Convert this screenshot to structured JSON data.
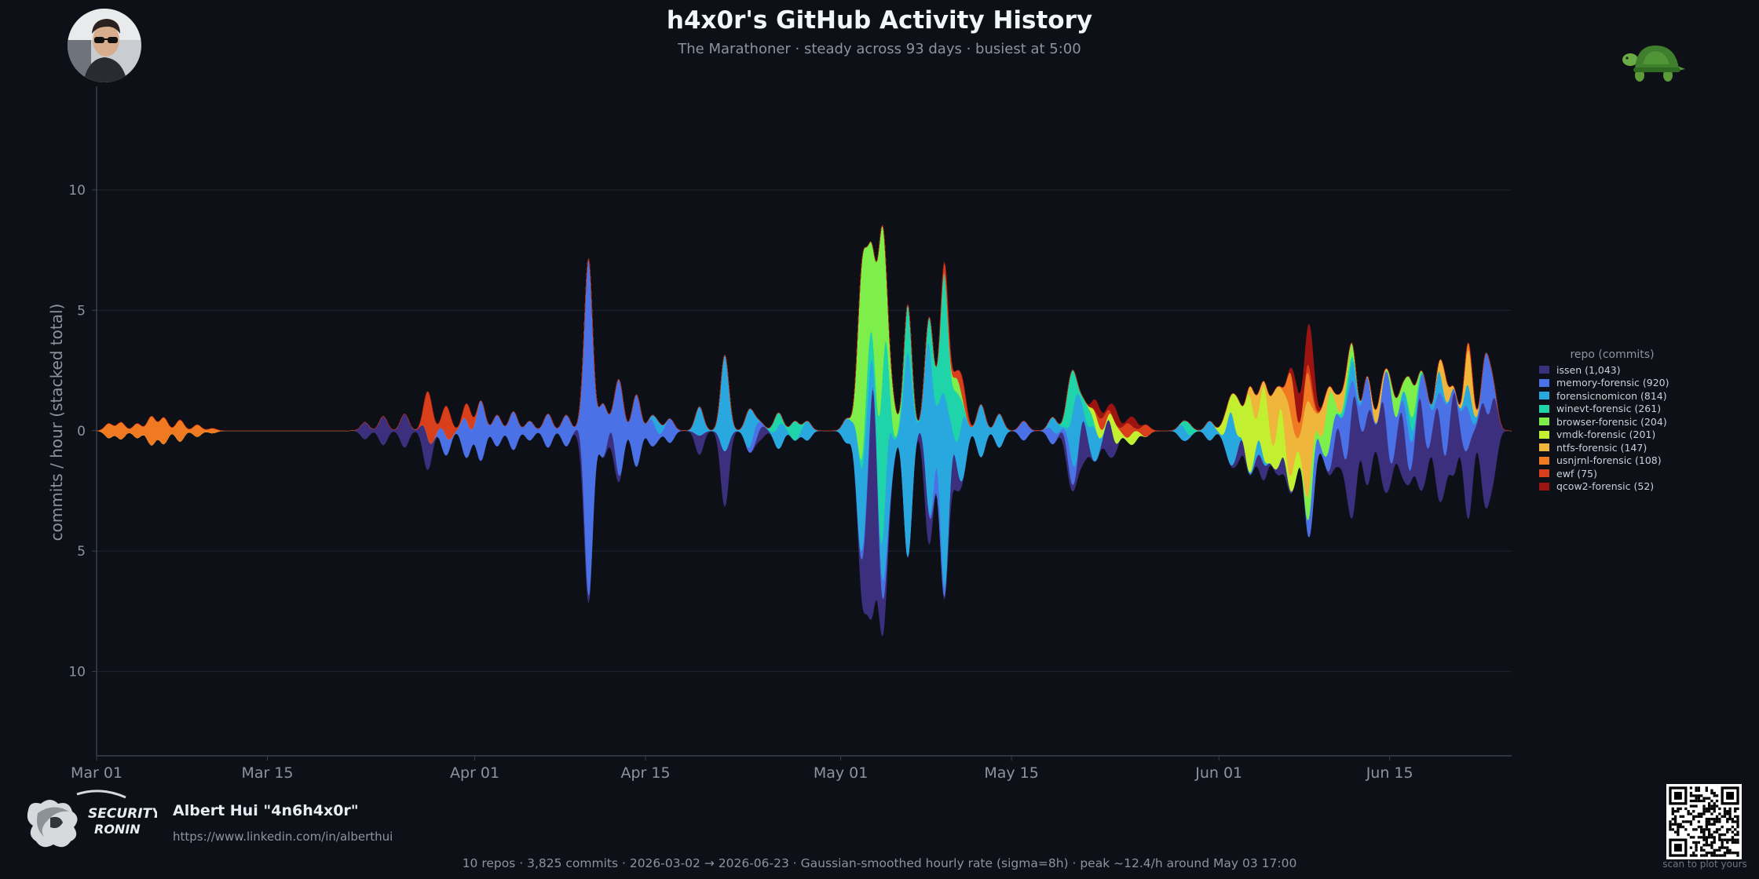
{
  "header": {
    "title": "h4x0r's GitHub Activity History",
    "subtitle": "The Marathoner · steady across 93 days · busiest at 5:00"
  },
  "author": {
    "name": "Albert Hui \"4n6h4x0r\"",
    "url": "https://www.linkedin.com/in/alberthui",
    "logo_text_top": "SECURITY",
    "logo_text_bottom": "RONIN"
  },
  "footer": {
    "summary": "10 repos · 3,825 commits · 2026-03-02 → 2026-06-23 · Gaussian-smoothed hourly rate (sigma=8h) · peak ~12.4/h around May 03 17:00",
    "qr_caption": "scan to plot yours"
  },
  "icons": {
    "avatar": "user-avatar-photo",
    "mascot": "turtle-icon",
    "logo": "security-ronin-logo",
    "qr": "qr-code"
  },
  "chart_data": {
    "type": "area",
    "subtype": "streamgraph",
    "ylabel": "commits / hour (stacked total)",
    "ylim": [
      -13.5,
      14.3
    ],
    "yticks": [
      -10,
      -5,
      0,
      5,
      10
    ],
    "ytick_labels": [
      "10",
      "5",
      "0",
      "5",
      "10"
    ],
    "xlim": [
      "2026-03-01",
      "2026-06-25"
    ],
    "xticks": [
      "2026-03-01",
      "2026-03-15",
      "2026-04-01",
      "2026-04-15",
      "2026-05-01",
      "2026-05-15",
      "2026-06-01",
      "2026-06-15"
    ],
    "xtick_labels": [
      "Mar 01",
      "Mar 15",
      "Apr 01",
      "Apr 15",
      "May 01",
      "May 15",
      "Jun 01",
      "Jun 15"
    ],
    "grid": "horizontal",
    "legend_title": "repo (commits)",
    "legend_position": "right",
    "series": [
      {
        "name": "issen",
        "commits": "1,043",
        "color": "#3b2f7e",
        "bursts": [
          [
            "2026-03-23T00",
            0.7
          ],
          [
            "2026-03-24T12",
            1.2
          ],
          [
            "2026-03-26T06",
            1.4
          ],
          [
            "2026-03-28T00",
            1.5
          ],
          [
            "2026-04-09T20",
            0.9
          ],
          [
            "2026-04-12T08",
            0.8
          ],
          [
            "2026-04-19T10",
            0.8
          ],
          [
            "2026-04-21T12",
            2.3
          ],
          [
            "2026-04-24T12",
            0.5
          ],
          [
            "2026-05-03T00",
            2.0
          ],
          [
            "2026-05-03T15",
            9.0
          ],
          [
            "2026-05-04T12",
            1.1
          ],
          [
            "2026-05-08T00",
            1.6
          ],
          [
            "2026-05-10T06",
            1.5
          ],
          [
            "2026-05-19T12",
            0.6
          ],
          [
            "2026-05-20T20",
            1.8
          ],
          [
            "2026-05-23T00",
            1.5
          ],
          [
            "2026-06-02T18",
            0.7
          ],
          [
            "2026-06-04T12",
            0.8
          ],
          [
            "2026-06-06T06",
            0.7
          ],
          [
            "2026-06-10T18",
            1.6
          ],
          [
            "2026-06-12T00",
            4.8
          ],
          [
            "2026-06-13T06",
            3.0
          ],
          [
            "2026-06-14T12",
            3.5
          ],
          [
            "2026-06-16T00",
            2.6
          ],
          [
            "2026-06-17T12",
            3.8
          ],
          [
            "2026-06-19T00",
            3.6
          ],
          [
            "2026-06-20T06",
            3.4
          ],
          [
            "2026-06-21T12",
            3.0
          ],
          [
            "2026-06-22T18",
            3.8
          ],
          [
            "2026-06-23T12",
            3.2
          ]
        ]
      },
      {
        "name": "memory-forensic",
        "commits": "920",
        "color": "#4a72e6",
        "bursts": [
          [
            "2026-03-29T12",
            0.9
          ],
          [
            "2026-03-31T06",
            1.6
          ],
          [
            "2026-04-01T12",
            2.5
          ],
          [
            "2026-04-02T20",
            1.3
          ],
          [
            "2026-04-04T04",
            1.6
          ],
          [
            "2026-04-05T12",
            0.8
          ],
          [
            "2026-04-07T00",
            1.4
          ],
          [
            "2026-04-08T12",
            1.3
          ],
          [
            "2026-04-10T08",
            14.0
          ],
          [
            "2026-04-11T12",
            2.2
          ],
          [
            "2026-04-12T20",
            4.0
          ],
          [
            "2026-04-14T06",
            3.0
          ],
          [
            "2026-04-15T12",
            1.1
          ],
          [
            "2026-04-17T00",
            1.0
          ],
          [
            "2026-04-24T00",
            0.6
          ],
          [
            "2026-05-03T00",
            0.5
          ],
          [
            "2026-05-04T12",
            0.8
          ],
          [
            "2026-05-09T00",
            1.2
          ],
          [
            "2026-05-16T00",
            0.8
          ],
          [
            "2026-05-18T06",
            0.6
          ],
          [
            "2026-05-19T20",
            1.0
          ],
          [
            "2026-06-08T18",
            1.5
          ],
          [
            "2026-06-10T06",
            1.2
          ],
          [
            "2026-06-11T12",
            2.3
          ],
          [
            "2026-06-13T00",
            1.8
          ],
          [
            "2026-06-15T00",
            3.2
          ],
          [
            "2026-06-16T12",
            1.5
          ],
          [
            "2026-06-18T00",
            2.4
          ],
          [
            "2026-06-19T12",
            2.2
          ],
          [
            "2026-06-21T06",
            1.9
          ],
          [
            "2026-06-23T00",
            2.5
          ]
        ]
      },
      {
        "name": "forensicnomicon",
        "commits": "814",
        "color": "#29a8e0",
        "bursts": [
          [
            "2026-04-16T00",
            0.5
          ],
          [
            "2026-04-19T10",
            1.2
          ],
          [
            "2026-04-21T12",
            4.0
          ],
          [
            "2026-04-23T12",
            1.6
          ],
          [
            "2026-04-26T00",
            1.0
          ],
          [
            "2026-04-28T06",
            0.8
          ],
          [
            "2026-05-01T12",
            1.0
          ],
          [
            "2026-05-02T12",
            3.0
          ],
          [
            "2026-05-03T04",
            2.5
          ],
          [
            "2026-05-04T20",
            3.5
          ],
          [
            "2026-05-06T12",
            8.5
          ],
          [
            "2026-05-08T06",
            7.0
          ],
          [
            "2026-05-09T12",
            8.0
          ],
          [
            "2026-05-11T00",
            2.5
          ],
          [
            "2026-05-12T12",
            2.2
          ],
          [
            "2026-05-14T00",
            1.4
          ],
          [
            "2026-05-18T12",
            0.6
          ],
          [
            "2026-05-20T06",
            2.8
          ],
          [
            "2026-05-21T18",
            1.4
          ],
          [
            "2026-05-29T00",
            0.6
          ],
          [
            "2026-05-31T06",
            0.8
          ],
          [
            "2026-06-02T00",
            2.2
          ],
          [
            "2026-06-04T06",
            0.6
          ],
          [
            "2026-06-12T00",
            0.8
          ],
          [
            "2026-06-16T12",
            0.8
          ],
          [
            "2026-06-19T00",
            0.9
          ],
          [
            "2026-06-21T12",
            1.0
          ]
        ]
      },
      {
        "name": "winevt-forensic",
        "commits": "261",
        "color": "#1ed4a8",
        "bursts": [
          [
            "2026-04-25T18",
            0.6
          ],
          [
            "2026-04-27T06",
            0.8
          ],
          [
            "2026-05-03T06",
            1.5
          ],
          [
            "2026-05-04T12",
            7.0
          ],
          [
            "2026-05-06T12",
            2.0
          ],
          [
            "2026-05-08T12",
            1.5
          ],
          [
            "2026-05-09T12",
            5.0
          ],
          [
            "2026-05-10T12",
            2.0
          ],
          [
            "2026-05-19T20",
            2.0
          ],
          [
            "2026-05-21T06",
            0.8
          ],
          [
            "2026-05-29T12",
            0.5
          ],
          [
            "2026-06-11T12",
            0.5
          ],
          [
            "2026-06-17T00",
            0.6
          ]
        ]
      },
      {
        "name": "browser-forensic",
        "commits": "204",
        "color": "#7eef4a",
        "bursts": [
          [
            "2026-05-02T18",
            8.0
          ],
          [
            "2026-05-03T12",
            2.5
          ],
          [
            "2026-05-04T06",
            7.0
          ],
          [
            "2026-05-05T06",
            1.6
          ],
          [
            "2026-05-10T12",
            0.6
          ],
          [
            "2026-06-08T12",
            1.2
          ],
          [
            "2026-06-10T00",
            2.2
          ],
          [
            "2026-06-11T18",
            0.6
          ],
          [
            "2026-06-15T12",
            0.8
          ],
          [
            "2026-06-16T18",
            1.5
          ]
        ]
      },
      {
        "name": "vmdk-forensic",
        "commits": "201",
        "color": "#c2ef2f",
        "bursts": [
          [
            "2026-05-22T00",
            0.6
          ],
          [
            "2026-05-23T12",
            0.8
          ],
          [
            "2026-05-25T00",
            0.5
          ],
          [
            "2026-06-01T12",
            0.7
          ],
          [
            "2026-06-02T12",
            1.5
          ],
          [
            "2026-06-03T12",
            3.2
          ],
          [
            "2026-06-04T18",
            3.0
          ],
          [
            "2026-06-06T00",
            2.2
          ],
          [
            "2026-06-07T06",
            1.0
          ]
        ]
      },
      {
        "name": "ntfs-forensic",
        "commits": "147",
        "color": "#f0b63c",
        "bursts": [
          [
            "2026-06-04T00",
            1.0
          ],
          [
            "2026-06-05T12",
            2.2
          ],
          [
            "2026-06-06T18",
            2.8
          ],
          [
            "2026-06-08T06",
            4.0
          ],
          [
            "2026-06-09T12",
            1.2
          ],
          [
            "2026-06-11T00",
            0.8
          ],
          [
            "2026-06-14T00",
            0.6
          ],
          [
            "2026-06-19T12",
            1.0
          ],
          [
            "2026-06-21T12",
            1.5
          ]
        ]
      },
      {
        "name": "usnjrnl-forensic",
        "commits": "108",
        "color": "#f07a22",
        "bursts": [
          [
            "2026-03-02T00",
            0.6
          ],
          [
            "2026-03-03T00",
            0.7
          ],
          [
            "2026-03-04T08",
            0.6
          ],
          [
            "2026-03-05T12",
            1.2
          ],
          [
            "2026-03-06T12",
            1.1
          ],
          [
            "2026-03-07T20",
            0.9
          ],
          [
            "2026-03-09T06",
            0.5
          ],
          [
            "2026-03-10T12",
            0.2
          ],
          [
            "2026-06-07T00",
            1.8
          ],
          [
            "2026-06-08T06",
            1.2
          ],
          [
            "2026-06-21T12",
            0.3
          ]
        ]
      },
      {
        "name": "ewf",
        "commits": "75",
        "color": "#d8401c",
        "bursts": [
          [
            "2026-03-28T06",
            2.0
          ],
          [
            "2026-03-29T18",
            1.3
          ],
          [
            "2026-03-31T12",
            0.8
          ],
          [
            "2026-05-09T18",
            0.6
          ],
          [
            "2026-05-11T00",
            0.8
          ],
          [
            "2026-05-22T12",
            0.5
          ],
          [
            "2026-05-24T12",
            0.6
          ],
          [
            "2026-05-26T00",
            0.5
          ],
          [
            "2026-06-08T12",
            0.4
          ]
        ]
      },
      {
        "name": "qcow2-forensic",
        "commits": "52",
        "color": "#9b1410",
        "bursts": [
          [
            "2026-05-22T00",
            0.5
          ],
          [
            "2026-05-23T12",
            0.6
          ],
          [
            "2026-05-25T00",
            0.4
          ],
          [
            "2026-06-07T12",
            1.2
          ],
          [
            "2026-06-08T12",
            1.8
          ]
        ]
      }
    ]
  }
}
